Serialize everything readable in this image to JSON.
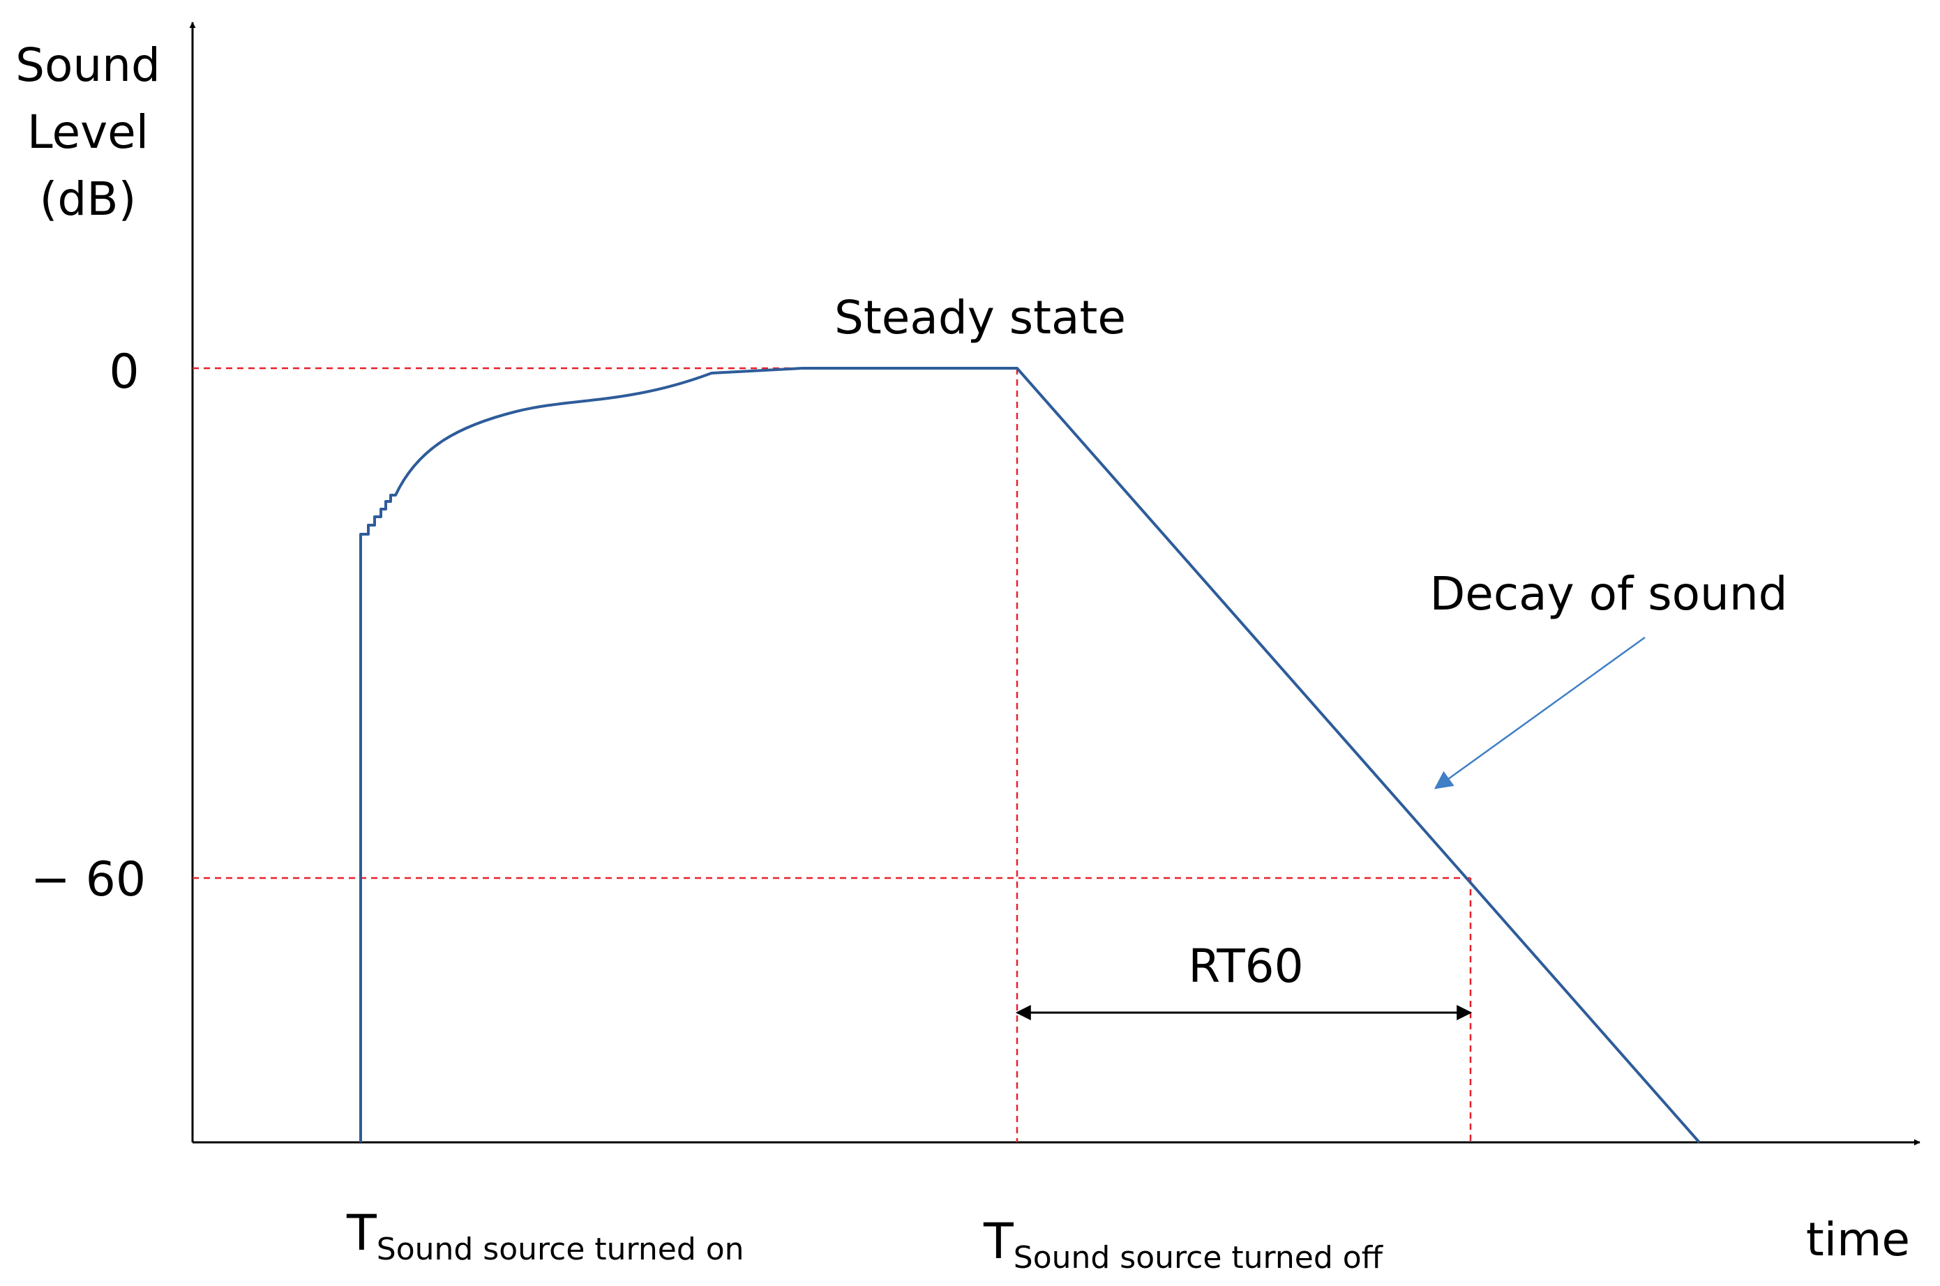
{
  "labels": {
    "y_axis_line1": "Sound",
    "y_axis_line2": "Level",
    "y_axis_line3": "(dB)",
    "x_axis": "time",
    "tick_0": "0",
    "tick_minus60": "− 60",
    "steady_state": "Steady state",
    "decay": "Decay of sound",
    "rt60": "RT60",
    "t_on_main": "T",
    "t_on_sub": "Sound source turned on",
    "t_off_main": "T",
    "t_off_sub": "Sound source turned off"
  },
  "colors": {
    "curve": "#2e5c9a",
    "guide": "#e8202a",
    "axis": "#000000",
    "arrow_annotation": "#3f7fc6"
  }
}
